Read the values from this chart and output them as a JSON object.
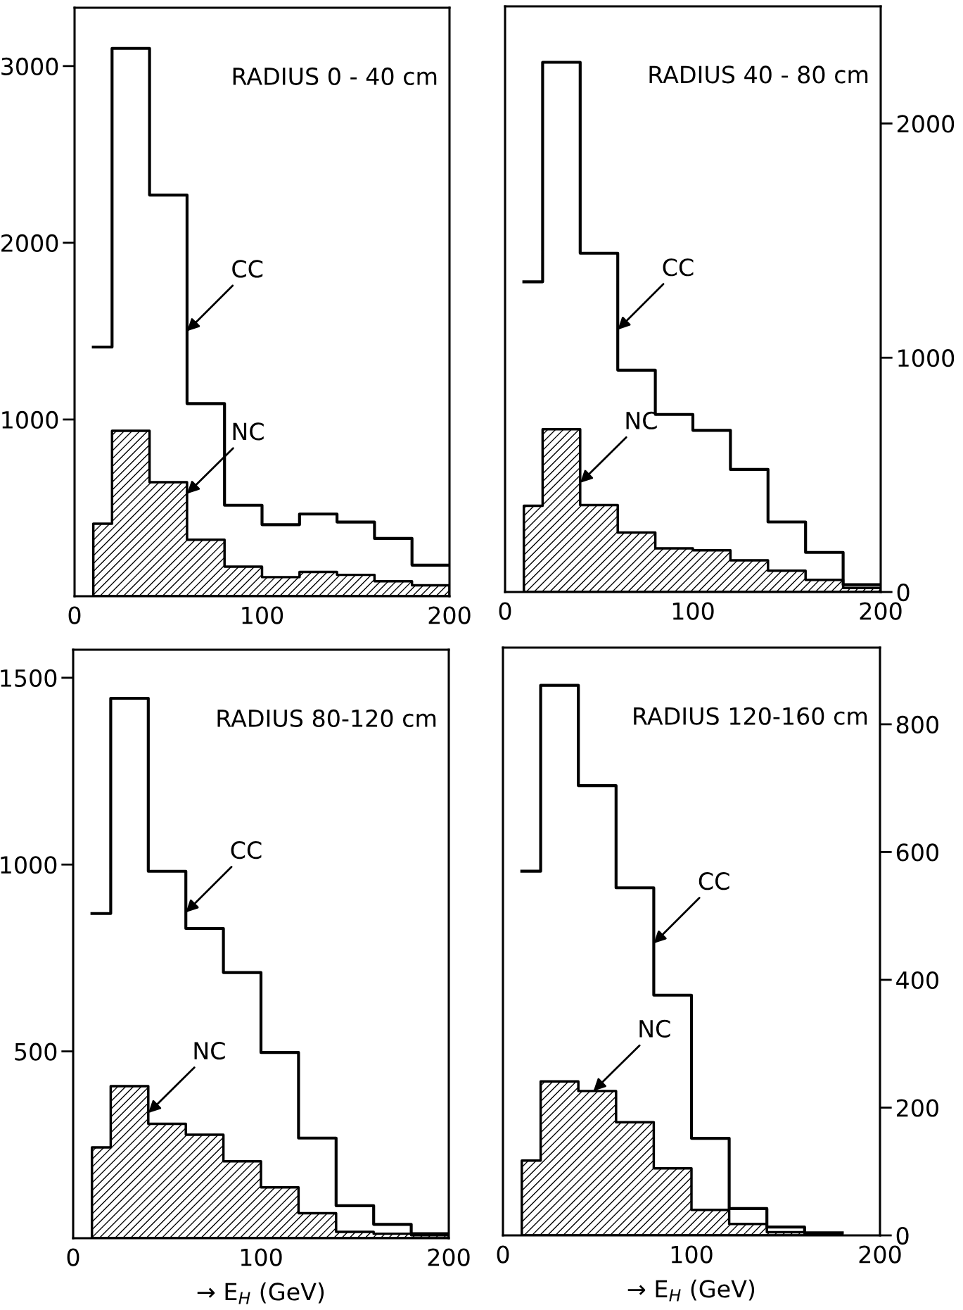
{
  "chart_data": [
    {
      "type": "step",
      "title": "RADIUS 0 - 40 cm",
      "x": [
        10,
        20,
        40,
        60,
        80,
        100,
        120,
        140,
        160,
        180,
        200
      ],
      "series": [
        {
          "color": "#000000",
          "values": [
            1410,
            3100,
            2270,
            1090,
            515,
            405,
            465,
            420,
            327,
            176,
            176
          ]
        },
        {
          "type": "area",
          "color": "#000000",
          "values": [
            410,
            936,
            645,
            320,
            167,
            108,
            137,
            121,
            85,
            62,
            62
          ]
        }
      ],
      "xlim": [
        0,
        200
      ],
      "xticks": [
        0,
        100,
        200
      ],
      "ylim": [
        0,
        3330
      ],
      "yticks": [
        1000,
        2000,
        3000
      ],
      "annotations": [
        {
          "text": "CC",
          "x": 60,
          "y": 1500
        },
        {
          "text": "NC",
          "x": 60,
          "y": 580
        }
      ]
    },
    {
      "type": "step",
      "title": "RADIUS 40 - 80 cm",
      "x": [
        10,
        20,
        40,
        60,
        80,
        100,
        120,
        140,
        160,
        180,
        200
      ],
      "series": [
        {
          "color": "#000000",
          "values": [
            1324,
            2261,
            1446,
            947,
            758,
            690,
            523,
            299,
            169,
            31,
            31
          ]
        },
        {
          "type": "area",
          "color": "#000000",
          "values": [
            368,
            695,
            371,
            254,
            186,
            178,
            135,
            91,
            52,
            17,
            17
          ]
        }
      ],
      "xlim": [
        0,
        200
      ],
      "xticks": [
        0,
        100,
        200
      ],
      "ylim": [
        0,
        2500
      ],
      "yticks": [
        0,
        1000,
        2000
      ],
      "annotations": [
        {
          "text": "CC",
          "x": 60,
          "y": 1120
        },
        {
          "text": "NC",
          "x": 40,
          "y": 466
        }
      ]
    },
    {
      "type": "step",
      "title": "RADIUS 80-120 cm",
      "xlabel": "→ E$_{H}$ (GeV)",
      "x": [
        10,
        20,
        40,
        60,
        80,
        100,
        120,
        140,
        160,
        180,
        200
      ],
      "series": [
        {
          "color": "#000000",
          "values": [
            869,
            1445,
            982,
            829,
            711,
            497,
            268,
            87,
            37,
            12,
            12
          ]
        },
        {
          "type": "area",
          "color": "#000000",
          "values": [
            243,
            407,
            306,
            277,
            206,
            136,
            67,
            17,
            12,
            8,
            8
          ]
        }
      ],
      "xlim": [
        0,
        200
      ],
      "xticks": [
        0,
        100,
        200
      ],
      "ylim": [
        0,
        1575
      ],
      "yticks": [
        500,
        1000,
        1500
      ],
      "annotations": [
        {
          "text": "CC",
          "x": 60,
          "y": 872
        },
        {
          "text": "NC",
          "x": 40,
          "y": 335
        }
      ]
    },
    {
      "type": "step",
      "title": "RADIUS 120-160 cm",
      "xlabel": "→ E$_{H}$ (GeV)",
      "x": [
        10,
        20,
        40,
        60,
        80,
        100,
        120,
        140,
        160,
        180
      ],
      "series": [
        {
          "color": "#000000",
          "values": [
            570,
            861,
            704,
            544,
            376,
            152,
            42,
            13,
            4,
            4
          ]
        },
        {
          "type": "area",
          "color": "#000000",
          "values": [
            117,
            241,
            226,
            177,
            105,
            40,
            18,
            5,
            2,
            2
          ]
        }
      ],
      "xlim": [
        0,
        200
      ],
      "xticks": [
        0,
        100,
        200
      ],
      "ylim": [
        0,
        920
      ],
      "yticks": [
        0,
        200,
        400,
        600,
        800
      ],
      "annotations": [
        {
          "text": "CC",
          "x": 80,
          "y": 457
        },
        {
          "text": "NC",
          "x": 48,
          "y": 226
        }
      ]
    }
  ]
}
